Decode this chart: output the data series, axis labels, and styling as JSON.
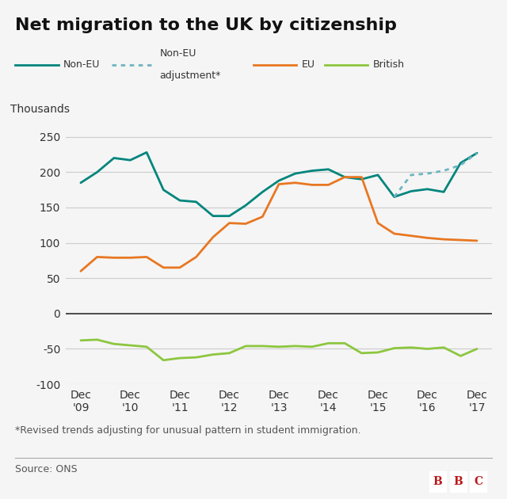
{
  "title": "Net migration to the UK by citizenship",
  "ylabel": "Thousands",
  "footnote": "*Revised trends adjusting for unusual pattern in student immigration.",
  "source": "Source: ONS",
  "ylim": [
    -100,
    260
  ],
  "yticks": [
    -100,
    -50,
    0,
    50,
    100,
    150,
    200,
    250
  ],
  "x_labels": [
    "Dec\n'09",
    "Dec\n'10",
    "Dec\n'11",
    "Dec\n'12",
    "Dec\n'13",
    "Dec\n'14",
    "Dec\n'15",
    "Dec\n'16",
    "Dec\n'17"
  ],
  "colors": {
    "non_eu": "#00857d",
    "non_eu_adj": "#6eb5c0",
    "eu": "#e87722",
    "british": "#8dc63f",
    "bg": "#f5f5f5",
    "grid": "#cccccc",
    "text": "#333333",
    "zero_line": "#333333"
  },
  "non_eu_x": [
    0,
    0.33,
    0.67,
    1.0,
    1.33,
    1.67,
    2.0,
    2.33,
    2.67,
    3.0,
    3.33,
    3.67,
    4.0,
    4.33,
    4.67,
    5.0,
    5.33,
    5.67,
    6.0,
    6.33,
    6.67,
    7.0,
    7.33,
    7.67,
    8.0
  ],
  "non_eu_y": [
    185,
    200,
    220,
    217,
    228,
    175,
    160,
    158,
    138,
    138,
    153,
    172,
    188,
    198,
    202,
    204,
    193,
    190,
    196,
    165,
    173,
    176,
    172,
    213,
    227
  ],
  "non_eu_adj_x": [
    6.33,
    6.67,
    7.0,
    7.33,
    7.67,
    8.0
  ],
  "non_eu_adj_y": [
    165,
    196,
    198,
    202,
    210,
    227
  ],
  "eu_x": [
    0,
    0.33,
    0.67,
    1.0,
    1.33,
    1.67,
    2.0,
    2.33,
    2.67,
    3.0,
    3.33,
    3.67,
    4.0,
    4.33,
    4.67,
    5.0,
    5.33,
    5.67,
    6.0,
    6.33,
    6.67,
    7.0,
    7.33,
    7.67,
    8.0
  ],
  "eu_y": [
    60,
    80,
    79,
    79,
    80,
    65,
    65,
    80,
    108,
    128,
    127,
    137,
    183,
    185,
    182,
    182,
    193,
    193,
    128,
    113,
    110,
    107,
    105,
    104,
    103
  ],
  "british_x": [
    0,
    0.33,
    0.67,
    1.0,
    1.33,
    1.67,
    2.0,
    2.33,
    2.67,
    3.0,
    3.33,
    3.67,
    4.0,
    4.33,
    4.67,
    5.0,
    5.33,
    5.67,
    6.0,
    6.33,
    6.67,
    7.0,
    7.33,
    7.67,
    8.0
  ],
  "british_y": [
    -38,
    -37,
    -43,
    -45,
    -47,
    -66,
    -63,
    -62,
    -58,
    -56,
    -46,
    -46,
    -47,
    -46,
    -47,
    -42,
    -42,
    -56,
    -55,
    -49,
    -48,
    -50,
    -48,
    -60,
    -50
  ]
}
